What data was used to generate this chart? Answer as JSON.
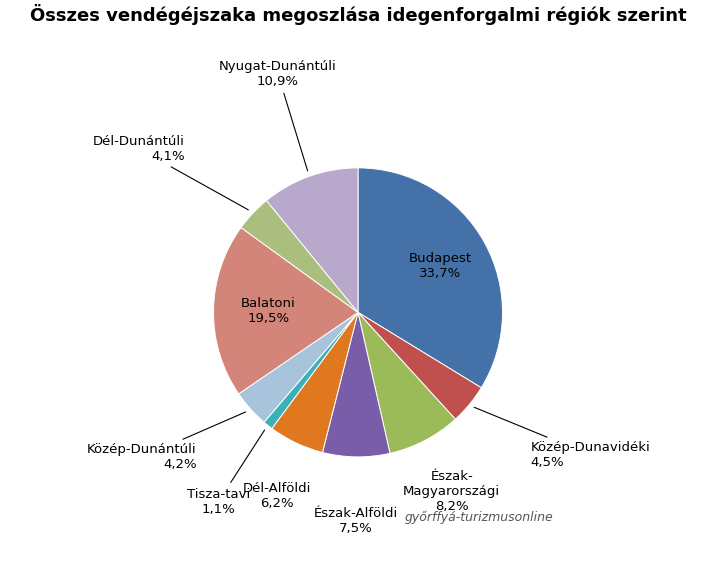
{
  "title": "Összes vendégéjszaka megoszlása idegenforgalmi régiók szerint",
  "slices": [
    {
      "label": "Budapest",
      "pct": "33,7%",
      "value": 33.7,
      "color": "#4472A8"
    },
    {
      "label": "Közép-Dunavidéki",
      "pct": "4,5%",
      "value": 4.5,
      "color": "#C0504D"
    },
    {
      "label": "Észak-\nMagyarországi",
      "pct": "8,2%",
      "value": 8.2,
      "color": "#9BBB59"
    },
    {
      "label": "Észak-Alföldi",
      "pct": "7,5%",
      "value": 7.5,
      "color": "#7A5DA8"
    },
    {
      "label": "Dél-Alföldi",
      "pct": "6,2%",
      "value": 6.2,
      "color": "#E07820"
    },
    {
      "label": "Tisza-tavi",
      "pct": "1,1%",
      "value": 1.1,
      "color": "#3AB0B8"
    },
    {
      "label": "Közép-Dunántúli",
      "pct": "4,2%",
      "value": 4.2,
      "color": "#A8C4DC"
    },
    {
      "label": "Balatoni",
      "pct": "19,5%",
      "value": 19.5,
      "color": "#D4857A"
    },
    {
      "label": "Dél-Dunántúli",
      "pct": "4,1%",
      "value": 4.1,
      "color": "#AABF7E"
    },
    {
      "label": "Nyugat-Dunántúli",
      "pct": "10,9%",
      "value": 10.9,
      "color": "#B8A8CC"
    }
  ],
  "watermark": "győrffyá-turizmusonline",
  "bg_color": "#FFFFFF",
  "title_fontsize": 13,
  "label_fontsize": 9.5
}
